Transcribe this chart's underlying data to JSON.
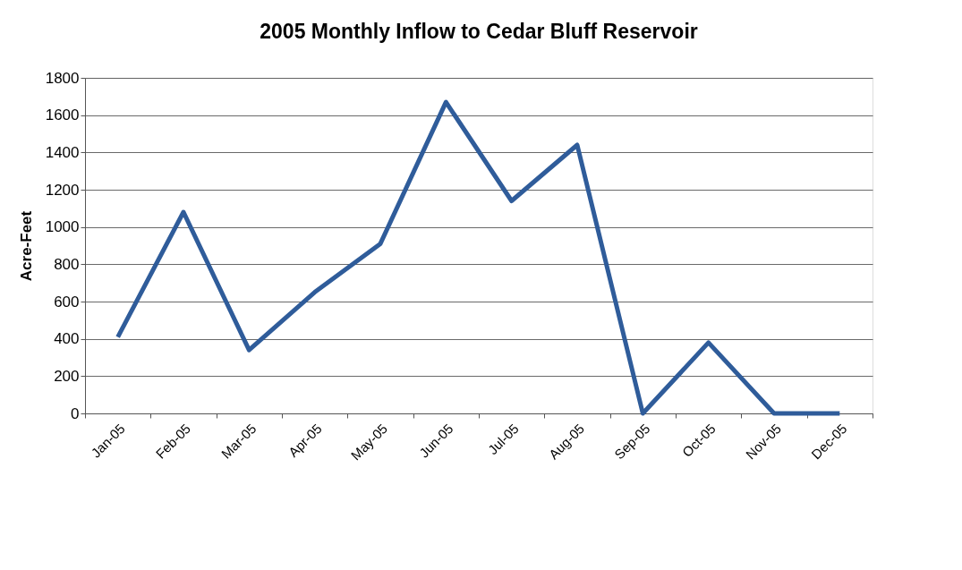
{
  "chart_data": {
    "type": "line",
    "title": "2005 Monthly Inflow to Cedar Bluff Reservoir",
    "ylabel": "Acre-Feet",
    "categories": [
      "Jan-05",
      "Feb-05",
      "Mar-05",
      "Apr-05",
      "May-05",
      "Jun-05",
      "Jul-05",
      "Aug-05",
      "Sep-05",
      "Oct-05",
      "Nov-05",
      "Dec-05"
    ],
    "series": [
      {
        "color": "#2f5c9a",
        "values": [
          410,
          1080,
          340,
          650,
          910,
          1670,
          1140,
          1440,
          0,
          380,
          0,
          0
        ]
      }
    ],
    "ylim": [
      0,
      1800
    ],
    "yticks": [
      0,
      200,
      400,
      600,
      800,
      1000,
      1200,
      1400,
      1600,
      1800
    ],
    "grid": "y",
    "marker": "none",
    "line_style": "solid"
  }
}
